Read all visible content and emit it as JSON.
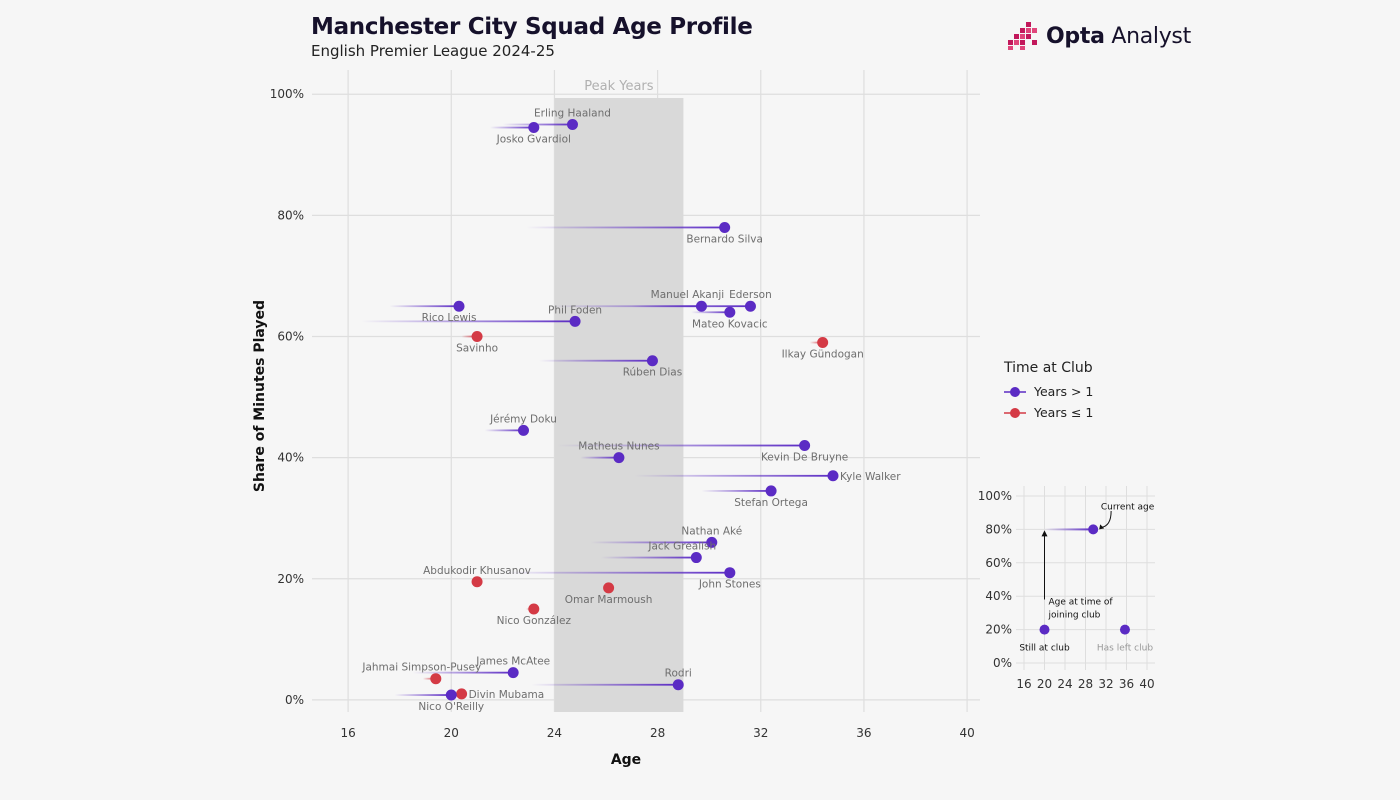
{
  "header": {
    "title": "Manchester City Squad Age Profile",
    "subtitle": "English Premier League 2024-25"
  },
  "brand": {
    "name_bold": "Opta",
    "name_rest": " Analyst"
  },
  "colors": {
    "long_tenure": "#5b2bc4",
    "short_tenure": "#d43a45",
    "peak_band": "#d9d9d9",
    "background": "#f6f6f6"
  },
  "legend": {
    "title": "Time at Club",
    "items": [
      {
        "label": "Years > 1",
        "color": "#5b2bc4"
      },
      {
        "label": "Years ≤ 1",
        "color": "#d43a45"
      }
    ]
  },
  "chart_data": {
    "type": "scatter",
    "title": "Manchester City Squad Age Profile",
    "subtitle": "English Premier League 2024-25",
    "xlabel": "Age",
    "ylabel": "Share of Minutes Played",
    "xlim": [
      14.6,
      40.5
    ],
    "ylim": [
      -2,
      104
    ],
    "xticks": [
      16,
      20,
      24,
      28,
      32,
      36,
      40
    ],
    "yticks": [
      0,
      20,
      40,
      60,
      80,
      100
    ],
    "ytick_labels": [
      "0%",
      "20%",
      "40%",
      "60%",
      "80%",
      "100%"
    ],
    "peak_band": {
      "x0": 24,
      "x1": 29,
      "label": "Peak Years"
    },
    "players": [
      {
        "name": "Erling Haaland",
        "age": 24.7,
        "share": 95,
        "joined_age": 22.0,
        "tenure": "long",
        "label_pos": "above"
      },
      {
        "name": "Josko Gvardiol",
        "age": 23.2,
        "share": 94.5,
        "joined_age": 21.5,
        "tenure": "long",
        "label_pos": "below"
      },
      {
        "name": "Bernardo Silva",
        "age": 30.6,
        "share": 78,
        "joined_age": 22.9,
        "tenure": "long",
        "label_pos": "below"
      },
      {
        "name": "Manuel Akanji",
        "age": 29.7,
        "share": 65,
        "joined_age": 27.0,
        "tenure": "long",
        "label_pos": "above-left"
      },
      {
        "name": "Ederson",
        "age": 31.6,
        "share": 65,
        "joined_age": 23.9,
        "tenure": "long",
        "label_pos": "above"
      },
      {
        "name": "Mateo Kovacic",
        "age": 30.8,
        "share": 64,
        "joined_age": 29.3,
        "tenure": "long",
        "label_pos": "below"
      },
      {
        "name": "Rico Lewis",
        "age": 20.3,
        "share": 65,
        "joined_age": 17.6,
        "tenure": "long",
        "label_pos": "below-left"
      },
      {
        "name": "Phil Foden",
        "age": 24.8,
        "share": 62.5,
        "joined_age": 16.5,
        "tenure": "long",
        "label_pos": "above"
      },
      {
        "name": "Savinho",
        "age": 21.0,
        "share": 60,
        "joined_age": 20.4,
        "tenure": "short",
        "label_pos": "below"
      },
      {
        "name": "Ilkay Gündogan",
        "age": 34.4,
        "share": 59,
        "joined_age": 33.9,
        "tenure": "short",
        "label_pos": "below"
      },
      {
        "name": "Rúben Dias",
        "age": 27.8,
        "share": 56,
        "joined_age": 23.4,
        "tenure": "long",
        "label_pos": "below"
      },
      {
        "name": "Jérémy Doku",
        "age": 22.8,
        "share": 44.5,
        "joined_age": 21.3,
        "tenure": "long",
        "label_pos": "above"
      },
      {
        "name": "Kevin De Bruyne",
        "age": 33.7,
        "share": 42,
        "joined_age": 24.1,
        "tenure": "long",
        "label_pos": "below"
      },
      {
        "name": "Matheus Nunes",
        "age": 26.5,
        "share": 40,
        "joined_age": 25.0,
        "tenure": "long",
        "label_pos": "above"
      },
      {
        "name": "Kyle Walker",
        "age": 34.8,
        "share": 37,
        "joined_age": 27.1,
        "tenure": "long",
        "label_pos": "right"
      },
      {
        "name": "Stefan Ortega",
        "age": 32.4,
        "share": 34.5,
        "joined_age": 29.7,
        "tenure": "long",
        "label_pos": "below"
      },
      {
        "name": "Nathan Aké",
        "age": 30.1,
        "share": 26,
        "joined_age": 25.4,
        "tenure": "long",
        "label_pos": "above"
      },
      {
        "name": "Jack Grealish",
        "age": 29.5,
        "share": 23.5,
        "joined_age": 25.8,
        "tenure": "long",
        "label_pos": "above-left"
      },
      {
        "name": "John Stones",
        "age": 30.8,
        "share": 21,
        "joined_age": 22.1,
        "tenure": "long",
        "label_pos": "below"
      },
      {
        "name": "Abdukodir Khusanov",
        "age": 21.0,
        "share": 19.5,
        "joined_age": 20.8,
        "tenure": "short",
        "label_pos": "above"
      },
      {
        "name": "Omar Marmoush",
        "age": 26.1,
        "share": 18.5,
        "joined_age": 25.9,
        "tenure": "short",
        "label_pos": "below"
      },
      {
        "name": "Nico González",
        "age": 23.2,
        "share": 15,
        "joined_age": 22.9,
        "tenure": "short",
        "label_pos": "below"
      },
      {
        "name": "James McAtee",
        "age": 22.4,
        "share": 4.5,
        "joined_age": 18.5,
        "tenure": "long",
        "label_pos": "above"
      },
      {
        "name": "Jahmai Simpson-Pusey",
        "age": 19.4,
        "share": 3.5,
        "joined_age": 18.9,
        "tenure": "short",
        "label_pos": "above-left"
      },
      {
        "name": "Rodri",
        "age": 28.8,
        "share": 2.5,
        "joined_age": 23.1,
        "tenure": "long",
        "label_pos": "above"
      },
      {
        "name": "Divin Mubama",
        "age": 20.4,
        "share": 1,
        "joined_age": 19.9,
        "tenure": "short",
        "label_pos": "right"
      },
      {
        "name": "Nico O'Reilly",
        "age": 20.0,
        "share": 0.8,
        "joined_age": 17.8,
        "tenure": "long",
        "label_pos": "below"
      }
    ],
    "inset": {
      "xticks": [
        16,
        20,
        24,
        28,
        32,
        36,
        40
      ],
      "yticks": [
        "0%",
        "20%",
        "40%",
        "60%",
        "80%",
        "100%"
      ],
      "annotations": {
        "current_age": "Current age",
        "joining_age_line1": "Age at time of",
        "joining_age_line2": "joining club",
        "still_at_club": "Still at club",
        "has_left_club": "Has left club"
      }
    }
  }
}
